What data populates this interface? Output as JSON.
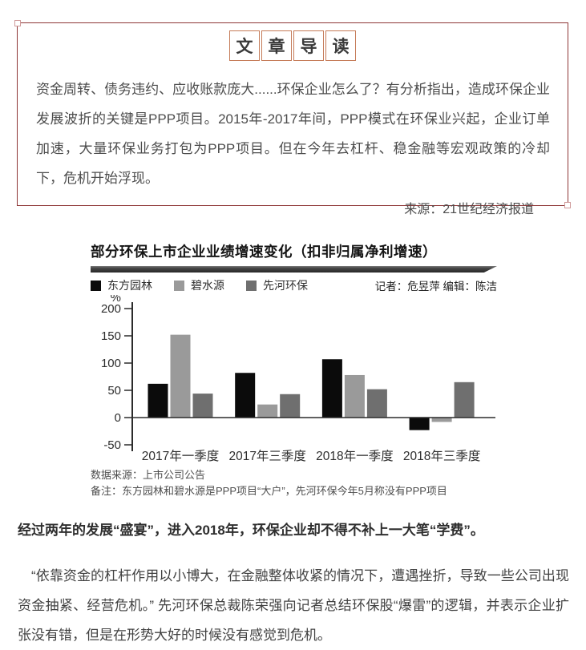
{
  "intro_box": {
    "title_chars": [
      "文",
      "章",
      "导",
      "读"
    ],
    "paragraph": "资金周转、债务违约、应收账款庞大......环保企业怎么了？有分析指出，造成环保企业发展波折的关键是PPP项目。2015年-2017年间，PPP模式在环保业兴起，企业订单加速，大量环保业务打包为PPP项目。但在今年去杠杆、稳金融等宏观政策的冷却下，危机开始浮现。",
    "source": "来源：21世纪经济报道"
  },
  "chart": {
    "title": "部分环保上市企业业绩增速变化（扣非归属净利增速）",
    "credits": "记者：危昱萍  编辑：陈洁",
    "source_note": "数据来源：上市公司公告",
    "remark_note": "备注：东方园林和碧水源是PPP项目“大户”，先河环保今年5月称没有PPP项目"
  },
  "chart_data": {
    "type": "bar",
    "title": "部分环保上市企业业绩增速变化（扣非归属净利增速）",
    "categories": [
      "2017年一季度",
      "2017年三季度",
      "2018年一季度",
      "2018年三季度"
    ],
    "series": [
      {
        "name": "东方园林",
        "color": "#0b0b0b",
        "values": [
          62,
          82,
          107,
          -23
        ]
      },
      {
        "name": "碧水源",
        "color": "#9a9a9a",
        "values": [
          152,
          24,
          78,
          -8
        ]
      },
      {
        "name": "先河环保",
        "color": "#6f6f6f",
        "values": [
          44,
          43,
          52,
          65
        ]
      }
    ],
    "ylabel": "%",
    "yticks": [
      200,
      150,
      100,
      50,
      0,
      -50
    ],
    "ylim": [
      -50,
      200
    ],
    "legend_position": "top-left",
    "grid": false,
    "axis_color": "#2b2b2b"
  },
  "body": {
    "lead_paragraph": "经过两年的发展“盛宴”，进入2018年，环保企业却不得不补上一大笔“学费”。",
    "quote_paragraph": "　“依靠资金的杠杆作用以小博大，在金融整体收紧的情况下，遭遇挫折，导致一些公司出现资金抽紧、经营危机。” 先河环保总裁陈荣强向记者总结环保股“爆雷”的逻辑，并表示企业扩张没有错，但是在形势大好的时候没有感觉到危机。"
  },
  "colors": {
    "box_border": "#8e3636",
    "char_box_border": "#c57b58",
    "ribbon_dark": "#262626"
  }
}
